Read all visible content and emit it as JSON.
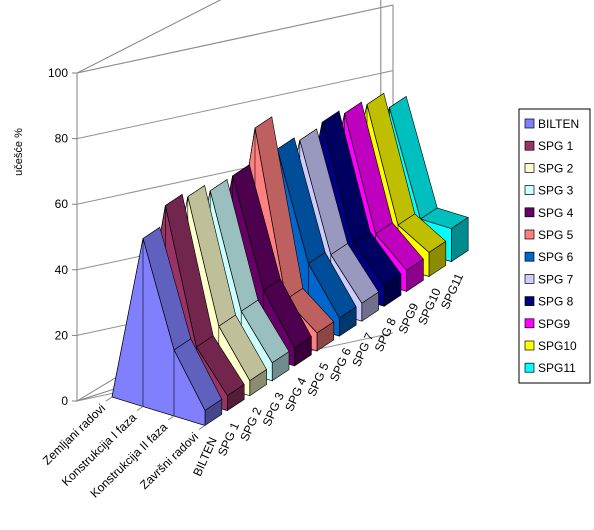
{
  "chart_data": {
    "type": "area",
    "subtype": "3d-area",
    "title": "",
    "ylabel": "učešće %",
    "xlabel": "",
    "ylim": [
      0,
      100
    ],
    "yticks": [
      0,
      20,
      40,
      60,
      80,
      100
    ],
    "categories": [
      "Zemljani radovi",
      "Konstrukcija I faza",
      "Konstrukcija II faza",
      "Završni radovi"
    ],
    "series": [
      {
        "name": "BILTEN",
        "color": "#8080ff",
        "values": [
          0,
          56,
          22,
          5
        ]
      },
      {
        "name": "SPG 1",
        "color": "#993366",
        "values": [
          0,
          62,
          18,
          5
        ]
      },
      {
        "name": "SPG 2",
        "color": "#ffffcc",
        "values": [
          0,
          60,
          20,
          5
        ]
      },
      {
        "name": "SPG 3",
        "color": "#ccffff",
        "values": [
          0,
          57,
          20,
          6
        ]
      },
      {
        "name": "SPG 4",
        "color": "#660066",
        "values": [
          0,
          57,
          22,
          6
        ]
      },
      {
        "name": "SPG 5",
        "color": "#ff8080",
        "values": [
          0,
          68,
          14,
          6
        ]
      },
      {
        "name": "SPG 6",
        "color": "#0066cc",
        "values": [
          0,
          56,
          21,
          6
        ]
      },
      {
        "name": "SPG 7",
        "color": "#ccccff",
        "values": [
          0,
          54,
          19,
          6
        ]
      },
      {
        "name": "SPG 8",
        "color": "#000080",
        "values": [
          0,
          55,
          18,
          7
        ]
      },
      {
        "name": "SPG9",
        "color": "#ff00ff",
        "values": [
          0,
          53,
          16,
          7
        ]
      },
      {
        "name": "SPG10",
        "color": "#ffff00",
        "values": [
          0,
          51,
          14,
          8
        ]
      },
      {
        "name": "SPG11",
        "color": "#00ffff",
        "values": [
          0,
          45,
          11,
          11
        ]
      }
    ],
    "grid": true,
    "legend": "right"
  }
}
